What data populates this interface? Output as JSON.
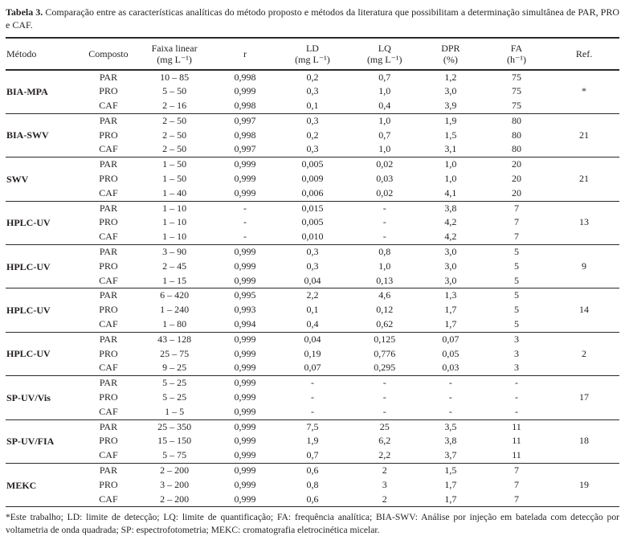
{
  "colors": {
    "ink": "#231f20",
    "paper": "#ffffff",
    "rule": "#2a2a2a"
  },
  "page": {
    "title_label": "Tabela 3.",
    "title_text": "Comparação entre as características analíticas do método proposto e métodos da literatura que possibilitam a determinação simultânea de PAR, PRO e CAF.",
    "footnote": "*Este trabalho; LD: limite de detecção; LQ: limite de quantificação; FA: frequência analítica; BIA-SWV: Análise por injeção em batelada com detecção por voltametria de onda quadrada; SP: espectrofotometria; MEKC: cromatografia eletrocinética micelar."
  },
  "table": {
    "columns": [
      {
        "key": "metodo",
        "name": "Método",
        "sub": ""
      },
      {
        "key": "composto",
        "name": "Composto",
        "sub": ""
      },
      {
        "key": "faixa",
        "name": "Faixa linear",
        "sub": "(mg L⁻¹)"
      },
      {
        "key": "r",
        "name": "r",
        "sub": ""
      },
      {
        "key": "ld",
        "name": "LD",
        "sub": "(mg L⁻¹)"
      },
      {
        "key": "lq",
        "name": "LQ",
        "sub": "(mg L⁻¹)"
      },
      {
        "key": "dpr",
        "name": "DPR",
        "sub": "(%)"
      },
      {
        "key": "fa",
        "name": "FA",
        "sub": "(h⁻¹)"
      },
      {
        "key": "ref",
        "name": "Ref.",
        "sub": ""
      }
    ],
    "groups": [
      {
        "method": "BIA-MPA",
        "ref": "*",
        "rows": [
          [
            "PAR",
            "10 – 85",
            "0,998",
            "0,2",
            "0,7",
            "1,2",
            "75"
          ],
          [
            "PRO",
            "5 – 50",
            "0,999",
            "0,3",
            "1,0",
            "3,0",
            "75"
          ],
          [
            "CAF",
            "2 – 16",
            "0,998",
            "0,1",
            "0,4",
            "3,9",
            "75"
          ]
        ]
      },
      {
        "method": "BIA-SWV",
        "ref": "21",
        "rows": [
          [
            "PAR",
            "2 – 50",
            "0,997",
            "0,3",
            "1,0",
            "1,9",
            "80"
          ],
          [
            "PRO",
            "2 – 50",
            "0,998",
            "0,2",
            "0,7",
            "1,5",
            "80"
          ],
          [
            "CAF",
            "2 – 50",
            "0,997",
            "0,3",
            "1,0",
            "3,1",
            "80"
          ]
        ]
      },
      {
        "method": "SWV",
        "ref": "21",
        "rows": [
          [
            "PAR",
            "1 – 50",
            "0,999",
            "0,005",
            "0,02",
            "1,0",
            "20"
          ],
          [
            "PRO",
            "1 – 50",
            "0,999",
            "0,009",
            "0,03",
            "1,0",
            "20"
          ],
          [
            "CAF",
            "1 – 40",
            "0,999",
            "0,006",
            "0,02",
            "4,1",
            "20"
          ]
        ]
      },
      {
        "method": "HPLC-UV",
        "ref": "13",
        "rows": [
          [
            "PAR",
            "1 – 10",
            "-",
            "0,015",
            "-",
            "3,8",
            "7"
          ],
          [
            "PRO",
            "1 – 10",
            "-",
            "0,005",
            "-",
            "4,2",
            "7"
          ],
          [
            "CAF",
            "1 – 10",
            "-",
            "0,010",
            "-",
            "4,2",
            "7"
          ]
        ]
      },
      {
        "method": "HPLC-UV",
        "ref": "9",
        "rows": [
          [
            "PAR",
            "3 – 90",
            "0,999",
            "0,3",
            "0,8",
            "3,0",
            "5"
          ],
          [
            "PRO",
            "2 – 45",
            "0,999",
            "0,3",
            "1,0",
            "3,0",
            "5"
          ],
          [
            "CAF",
            "1 – 15",
            "0,999",
            "0,04",
            "0,13",
            "3,0",
            "5"
          ]
        ]
      },
      {
        "method": "HPLC-UV",
        "ref": "14",
        "rows": [
          [
            "PAR",
            "6 – 420",
            "0,995",
            "2,2",
            "4,6",
            "1,3",
            "5"
          ],
          [
            "PRO",
            "1 – 240",
            "0,993",
            "0,1",
            "0,12",
            "1,7",
            "5"
          ],
          [
            "CAF",
            "1 – 80",
            "0,994",
            "0,4",
            "0,62",
            "1,7",
            "5"
          ]
        ]
      },
      {
        "method": "HPLC-UV",
        "ref": "2",
        "rows": [
          [
            "PAR",
            "43 – 128",
            "0,999",
            "0,04",
            "0,125",
            "0,07",
            "3"
          ],
          [
            "PRO",
            "25 – 75",
            "0,999",
            "0,19",
            "0,776",
            "0,05",
            "3"
          ],
          [
            "CAF",
            "9 – 25",
            "0,999",
            "0,07",
            "0,295",
            "0,03",
            "3"
          ]
        ]
      },
      {
        "method": "SP-UV/Vis",
        "ref": "17",
        "rows": [
          [
            "PAR",
            "5 – 25",
            "0,999",
            "-",
            "-",
            "-",
            "-"
          ],
          [
            "PRO",
            "5 – 25",
            "0,999",
            "-",
            "-",
            "-",
            "-"
          ],
          [
            "CAF",
            "1 – 5",
            "0,999",
            "-",
            "-",
            "-",
            "-"
          ]
        ]
      },
      {
        "method": "SP-UV/FIA",
        "ref": "18",
        "rows": [
          [
            "PAR",
            "25 – 350",
            "0,999",
            "7,5",
            "25",
            "3,5",
            "11"
          ],
          [
            "PRO",
            "15 – 150",
            "0,999",
            "1,9",
            "6,2",
            "3,8",
            "11"
          ],
          [
            "CAF",
            "5 – 75",
            "0,999",
            "0,7",
            "2,2",
            "3,7",
            "11"
          ]
        ]
      },
      {
        "method": "MEKC",
        "ref": "19",
        "rows": [
          [
            "PAR",
            "2 – 200",
            "0,999",
            "0,6",
            "2",
            "1,5",
            "7"
          ],
          [
            "PRO",
            "3 – 200",
            "0,999",
            "0,8",
            "3",
            "1,7",
            "7"
          ],
          [
            "CAF",
            "2 – 200",
            "0,999",
            "0,6",
            "2",
            "1,7",
            "7"
          ]
        ]
      }
    ]
  }
}
